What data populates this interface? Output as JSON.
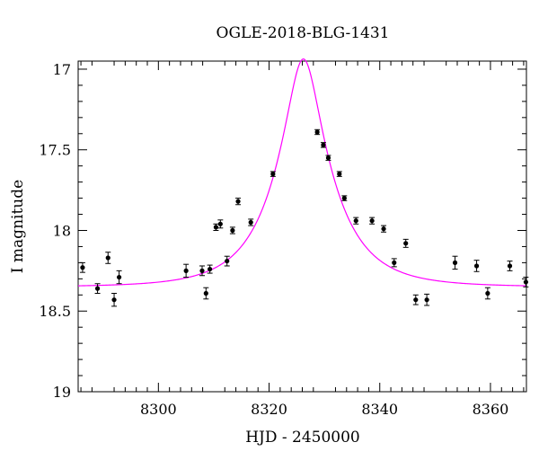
{
  "chart_data": {
    "type": "scatter",
    "title": "OGLE-2018-BLG-1431",
    "xlabel": "HJD - 2450000",
    "ylabel": "I magnitude",
    "xlim": [
      8285.5,
      8366.5
    ],
    "ylim": [
      19,
      16.95
    ],
    "y_inverted": true,
    "grid": false,
    "x_ticks": [
      8300,
      8320,
      8340,
      8360
    ],
    "x_tick_labels": [
      "8300",
      "8320",
      "8340",
      "8360"
    ],
    "y_ticks": [
      17,
      17.5,
      18,
      18.5,
      19
    ],
    "y_tick_labels": [
      "17",
      "17.5",
      "18",
      "18.5",
      "19"
    ],
    "model": {
      "name": "",
      "color": "#ff00ff",
      "t0": 8326.2,
      "u0": 0.28,
      "tE": 10.2,
      "baseline_mag": 18.35
    },
    "series": [
      {
        "name": "",
        "color": "#000000",
        "points": [
          {
            "x": 8286.3,
            "y": 18.23,
            "err": 0.03
          },
          {
            "x": 8289.0,
            "y": 18.36,
            "err": 0.03
          },
          {
            "x": 8290.9,
            "y": 18.17,
            "err": 0.035
          },
          {
            "x": 8292.0,
            "y": 18.43,
            "err": 0.04
          },
          {
            "x": 8292.9,
            "y": 18.29,
            "err": 0.04
          },
          {
            "x": 8305.0,
            "y": 18.25,
            "err": 0.04
          },
          {
            "x": 8307.9,
            "y": 18.25,
            "err": 0.03
          },
          {
            "x": 8308.6,
            "y": 18.39,
            "err": 0.035
          },
          {
            "x": 8309.3,
            "y": 18.24,
            "err": 0.025
          },
          {
            "x": 8310.4,
            "y": 17.98,
            "err": 0.02
          },
          {
            "x": 8311.2,
            "y": 17.96,
            "err": 0.025
          },
          {
            "x": 8312.4,
            "y": 18.19,
            "err": 0.03
          },
          {
            "x": 8313.4,
            "y": 18.0,
            "err": 0.02
          },
          {
            "x": 8314.4,
            "y": 17.82,
            "err": 0.02
          },
          {
            "x": 8316.7,
            "y": 17.95,
            "err": 0.02
          },
          {
            "x": 8320.7,
            "y": 17.65,
            "err": 0.015
          },
          {
            "x": 8328.7,
            "y": 17.39,
            "err": 0.015
          },
          {
            "x": 8329.8,
            "y": 17.47,
            "err": 0.015
          },
          {
            "x": 8330.7,
            "y": 17.55,
            "err": 0.015
          },
          {
            "x": 8332.7,
            "y": 17.65,
            "err": 0.015
          },
          {
            "x": 8333.6,
            "y": 17.8,
            "err": 0.015
          },
          {
            "x": 8335.7,
            "y": 17.94,
            "err": 0.02
          },
          {
            "x": 8338.6,
            "y": 17.94,
            "err": 0.02
          },
          {
            "x": 8340.7,
            "y": 17.99,
            "err": 0.02
          },
          {
            "x": 8342.6,
            "y": 18.2,
            "err": 0.025
          },
          {
            "x": 8344.7,
            "y": 18.08,
            "err": 0.025
          },
          {
            "x": 8346.5,
            "y": 18.43,
            "err": 0.03
          },
          {
            "x": 8348.5,
            "y": 18.43,
            "err": 0.035
          },
          {
            "x": 8353.6,
            "y": 18.2,
            "err": 0.04
          },
          {
            "x": 8357.5,
            "y": 18.22,
            "err": 0.035
          },
          {
            "x": 8359.5,
            "y": 18.39,
            "err": 0.035
          },
          {
            "x": 8363.5,
            "y": 18.22,
            "err": 0.03
          },
          {
            "x": 8366.4,
            "y": 18.32,
            "err": 0.03
          }
        ]
      }
    ]
  }
}
